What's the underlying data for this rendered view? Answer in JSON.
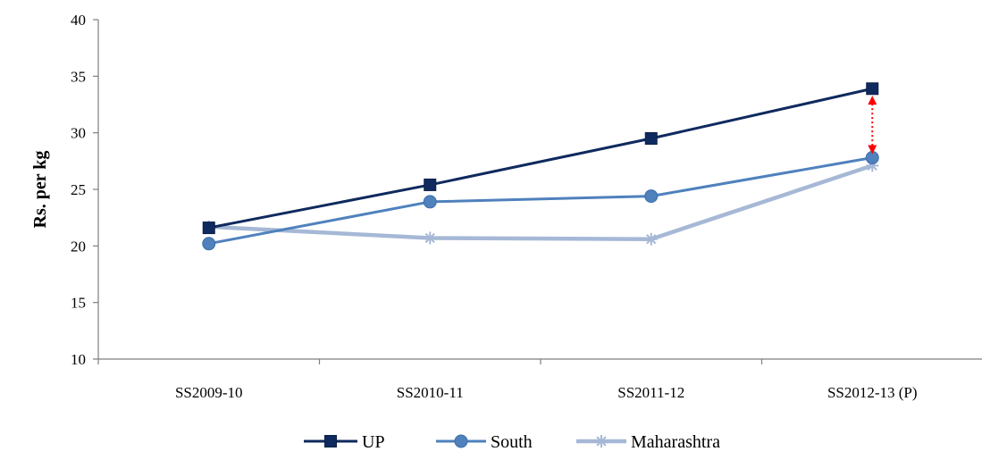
{
  "chart_data": {
    "type": "line",
    "title": "",
    "xlabel": "",
    "ylabel": "Rs. per kg",
    "categories": [
      "SS2009-10",
      "SS2010-11",
      "SS2011-12",
      "SS2012-13 (P)"
    ],
    "ylim": [
      10,
      40
    ],
    "yticks": [
      10,
      15,
      20,
      25,
      30,
      35,
      40
    ],
    "grid": false,
    "legend_position": "bottom",
    "series": [
      {
        "name": "UP",
        "values": [
          21.6,
          25.4,
          29.5,
          33.9
        ],
        "color": "#0f2a5e",
        "marker": "square"
      },
      {
        "name": "South",
        "values": [
          20.2,
          23.9,
          24.4,
          27.8
        ],
        "color": "#4f81bd",
        "marker": "circle"
      },
      {
        "name": "Maharashtra",
        "values": [
          21.7,
          20.7,
          20.6,
          27.1
        ],
        "color": "#a6b8d6",
        "marker": "asterisk"
      }
    ],
    "annotations": [
      {
        "type": "double-arrow",
        "category": "SS2012-13 (P)",
        "from": 28.2,
        "to": 33.2,
        "color": "#ff0000",
        "style": "dotted"
      }
    ]
  }
}
